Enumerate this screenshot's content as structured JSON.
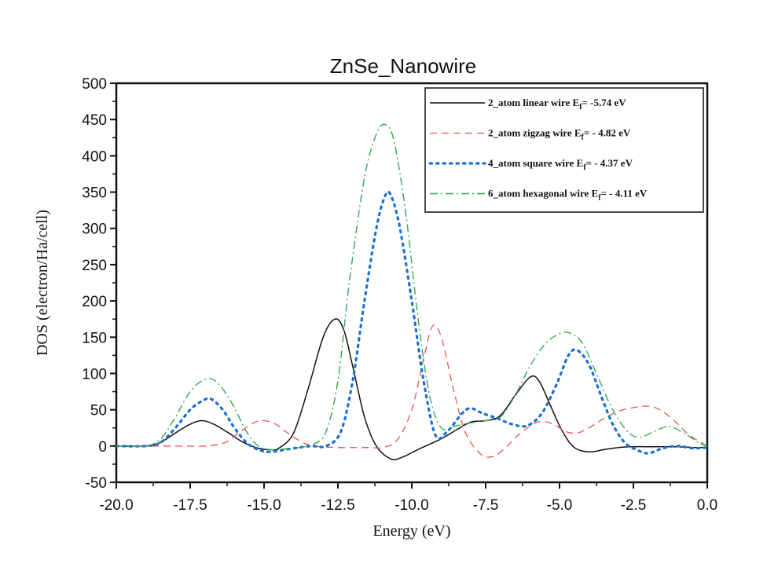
{
  "chart_data": {
    "type": "line",
    "title": "ZnSe_Nanowire",
    "xlabel": "Energy (eV)",
    "ylabel": "DOS (electron/Ha/cell)",
    "xlim": [
      -20.0,
      0.0
    ],
    "ylim": [
      -50,
      500
    ],
    "xticks": [
      "-20.0",
      "-17.5",
      "-15.0",
      "-12.5",
      "-10.0",
      "-7.5",
      "-5.0",
      "-2.5",
      "0.0"
    ],
    "yticks": [
      "-50",
      "0",
      "50",
      "100",
      "150",
      "200",
      "250",
      "300",
      "350",
      "400",
      "450",
      "500"
    ],
    "grid": false,
    "legend_position": "top-right",
    "series": [
      {
        "name": "2_atom linear wire E",
        "name_sub": "f",
        "name_suffix": "= -5.74 eV",
        "color": "#111111",
        "style": "solid",
        "points": [
          [
            -20,
            0
          ],
          [
            -19,
            0
          ],
          [
            -18.5,
            5
          ],
          [
            -18,
            18
          ],
          [
            -17.5,
            30
          ],
          [
            -17.1,
            35
          ],
          [
            -16.7,
            30
          ],
          [
            -16.2,
            18
          ],
          [
            -15.7,
            5
          ],
          [
            -15.2,
            -3
          ],
          [
            -14.8,
            -5
          ],
          [
            -14.5,
            -3
          ],
          [
            -14,
            18
          ],
          [
            -13.5,
            80
          ],
          [
            -13,
            150
          ],
          [
            -12.6,
            175
          ],
          [
            -12.3,
            160
          ],
          [
            -12,
            110
          ],
          [
            -11.6,
            40
          ],
          [
            -11.2,
            0
          ],
          [
            -10.7,
            -18
          ],
          [
            -10.3,
            -15
          ],
          [
            -9.8,
            -5
          ],
          [
            -9,
            10
          ],
          [
            -8.5,
            22
          ],
          [
            -8,
            33
          ],
          [
            -7.5,
            35
          ],
          [
            -7,
            42
          ],
          [
            -6.5,
            70
          ],
          [
            -6,
            95
          ],
          [
            -5.7,
            90
          ],
          [
            -5.3,
            55
          ],
          [
            -4.9,
            20
          ],
          [
            -4.5,
            -2
          ],
          [
            -4,
            -8
          ],
          [
            -3.5,
            -5
          ],
          [
            -3,
            -2
          ],
          [
            -2.5,
            -1
          ],
          [
            -2,
            -1
          ],
          [
            -1,
            -1
          ],
          [
            -0.5,
            -2
          ],
          [
            0,
            -2
          ]
        ]
      },
      {
        "name": "2_atom zigzag wire E",
        "name_sub": "f",
        "name_suffix": "= - 4.82 eV",
        "color": "#e8554f",
        "style": "dashed",
        "points": [
          [
            -20,
            0
          ],
          [
            -18,
            0
          ],
          [
            -17,
            0
          ],
          [
            -16.3,
            5
          ],
          [
            -15.8,
            20
          ],
          [
            -15.3,
            33
          ],
          [
            -15,
            35
          ],
          [
            -14.6,
            30
          ],
          [
            -14.2,
            18
          ],
          [
            -13.7,
            5
          ],
          [
            -13.3,
            0
          ],
          [
            -12.5,
            -2
          ],
          [
            -11.5,
            -2
          ],
          [
            -11,
            -2
          ],
          [
            -10.5,
            8
          ],
          [
            -10,
            50
          ],
          [
            -9.6,
            120
          ],
          [
            -9.3,
            165
          ],
          [
            -9,
            150
          ],
          [
            -8.6,
            80
          ],
          [
            -8.2,
            20
          ],
          [
            -7.7,
            -10
          ],
          [
            -7.3,
            -15
          ],
          [
            -6.9,
            -5
          ],
          [
            -6.4,
            15
          ],
          [
            -5.9,
            30
          ],
          [
            -5.6,
            34
          ],
          [
            -5.2,
            30
          ],
          [
            -4.8,
            20
          ],
          [
            -4.4,
            18
          ],
          [
            -4,
            25
          ],
          [
            -3.5,
            38
          ],
          [
            -3,
            48
          ],
          [
            -2.5,
            53
          ],
          [
            -2.1,
            55
          ],
          [
            -1.7,
            52
          ],
          [
            -1.2,
            38
          ],
          [
            -0.6,
            15
          ],
          [
            0,
            0
          ]
        ]
      },
      {
        "name": "4_atom square wire E",
        "name_sub": "f",
        "name_suffix": "= - 4.37 eV",
        "color": "#1d6fd6",
        "style": "dotted",
        "points": [
          [
            -20,
            0
          ],
          [
            -19,
            0
          ],
          [
            -18.5,
            5
          ],
          [
            -18,
            25
          ],
          [
            -17.5,
            50
          ],
          [
            -17.1,
            62
          ],
          [
            -16.8,
            65
          ],
          [
            -16.4,
            50
          ],
          [
            -16,
            25
          ],
          [
            -15.6,
            5
          ],
          [
            -15.2,
            -5
          ],
          [
            -14.8,
            -8
          ],
          [
            -14.3,
            -5
          ],
          [
            -13.8,
            -2
          ],
          [
            -13.4,
            0
          ],
          [
            -12.9,
            0
          ],
          [
            -12.4,
            20
          ],
          [
            -12,
            90
          ],
          [
            -11.6,
            200
          ],
          [
            -11.2,
            300
          ],
          [
            -10.9,
            345
          ],
          [
            -10.7,
            345
          ],
          [
            -10.4,
            300
          ],
          [
            -10,
            200
          ],
          [
            -9.6,
            90
          ],
          [
            -9.2,
            15
          ],
          [
            -8.8,
            20
          ],
          [
            -8.3,
            45
          ],
          [
            -8,
            52
          ],
          [
            -7.6,
            45
          ],
          [
            -7.1,
            38
          ],
          [
            -6.6,
            30
          ],
          [
            -6.1,
            28
          ],
          [
            -5.6,
            45
          ],
          [
            -5.1,
            85
          ],
          [
            -4.7,
            125
          ],
          [
            -4.4,
            132
          ],
          [
            -4,
            112
          ],
          [
            -3.6,
            70
          ],
          [
            -3.2,
            30
          ],
          [
            -2.8,
            5
          ],
          [
            -2.4,
            -5
          ],
          [
            -2,
            -10
          ],
          [
            -1.5,
            -3
          ],
          [
            -1,
            0
          ],
          [
            -0.5,
            -3
          ],
          [
            0,
            -2
          ]
        ]
      },
      {
        "name": "6_atom hexagonal wire E",
        "name_sub": "f",
        "name_suffix": "= - 4.11 eV",
        "color": "#33a852",
        "style": "dashdot",
        "points": [
          [
            -20,
            0
          ],
          [
            -19,
            0
          ],
          [
            -18.5,
            10
          ],
          [
            -18,
            40
          ],
          [
            -17.5,
            75
          ],
          [
            -17,
            92
          ],
          [
            -16.6,
            88
          ],
          [
            -16.1,
            60
          ],
          [
            -15.6,
            20
          ],
          [
            -15.2,
            0
          ],
          [
            -14.8,
            -5
          ],
          [
            -14.3,
            -4
          ],
          [
            -13.8,
            -2
          ],
          [
            -13.3,
            3
          ],
          [
            -12.9,
            20
          ],
          [
            -12.5,
            90
          ],
          [
            -12.1,
            230
          ],
          [
            -11.6,
            370
          ],
          [
            -11.2,
            430
          ],
          [
            -10.9,
            443
          ],
          [
            -10.6,
            420
          ],
          [
            -10.2,
            320
          ],
          [
            -9.8,
            180
          ],
          [
            -9.4,
            70
          ],
          [
            -9,
            25
          ],
          [
            -8.5,
            28
          ],
          [
            -8,
            32
          ],
          [
            -7.5,
            35
          ],
          [
            -7,
            40
          ],
          [
            -6.5,
            70
          ],
          [
            -6,
            110
          ],
          [
            -5.5,
            140
          ],
          [
            -5,
            155
          ],
          [
            -4.6,
            155
          ],
          [
            -4.2,
            140
          ],
          [
            -3.7,
            95
          ],
          [
            -3.2,
            50
          ],
          [
            -2.7,
            20
          ],
          [
            -2.3,
            12
          ],
          [
            -1.8,
            20
          ],
          [
            -1.3,
            27
          ],
          [
            -0.8,
            18
          ],
          [
            -0.3,
            5
          ],
          [
            0,
            0
          ]
        ]
      }
    ]
  }
}
